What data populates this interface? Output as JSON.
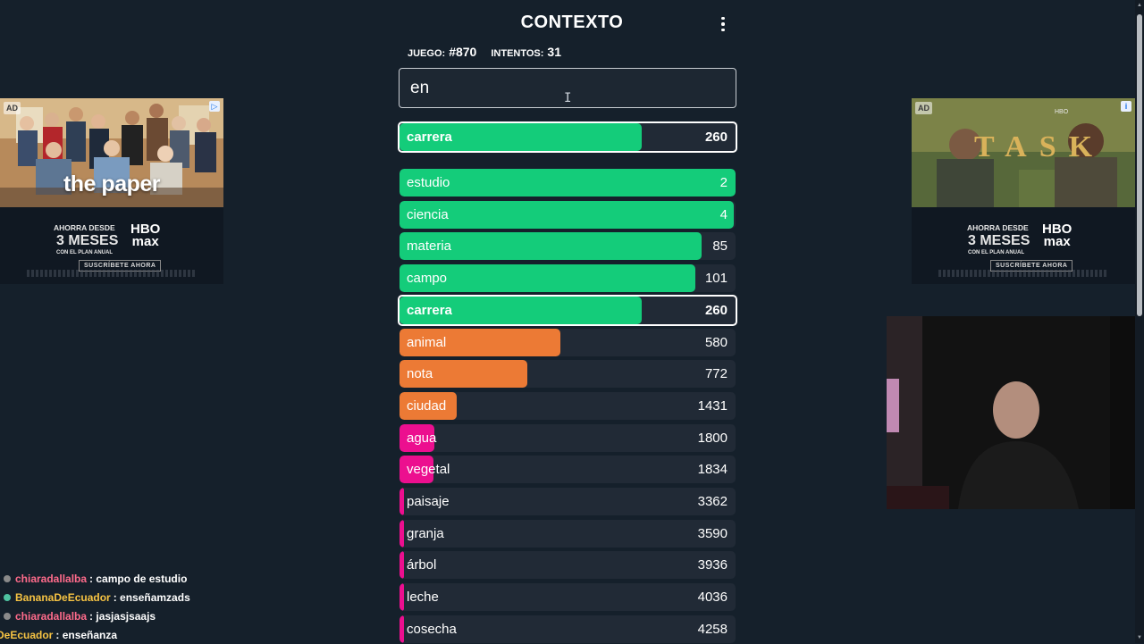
{
  "header": {
    "title": "CONTEXTO",
    "menu_icon": "kebab-menu-icon"
  },
  "game_info": {
    "game_label": "JUEGO:",
    "game_number": "#870",
    "attempts_label": "INTENTOS:",
    "attempts_value": "31"
  },
  "search": {
    "value": "en",
    "placeholder": ""
  },
  "last_guess": {
    "word": "carrera",
    "rank": "260",
    "fill": 0.72,
    "color": "#14cc7a"
  },
  "colors": {
    "green": "#14cc7a",
    "orange": "#ec7a35",
    "pink": "#ec0f8f",
    "row_bg": "#212a36"
  },
  "guesses": [
    {
      "word": "estudio",
      "rank": "2",
      "fill": 1.0,
      "color": "green",
      "highlight": false
    },
    {
      "word": "ciencia",
      "rank": "4",
      "fill": 0.995,
      "color": "green",
      "highlight": false
    },
    {
      "word": "materia",
      "rank": "85",
      "fill": 0.9,
      "color": "green",
      "highlight": false
    },
    {
      "word": "campo",
      "rank": "101",
      "fill": 0.88,
      "color": "green",
      "highlight": false
    },
    {
      "word": "carrera",
      "rank": "260",
      "fill": 0.72,
      "color": "green",
      "highlight": true
    },
    {
      "word": "animal",
      "rank": "580",
      "fill": 0.48,
      "color": "orange",
      "highlight": false
    },
    {
      "word": "nota",
      "rank": "772",
      "fill": 0.38,
      "color": "orange",
      "highlight": false
    },
    {
      "word": "ciudad",
      "rank": "1431",
      "fill": 0.17,
      "color": "orange",
      "highlight": false
    },
    {
      "word": "agua",
      "rank": "1800",
      "fill": 0.105,
      "color": "pink",
      "highlight": false
    },
    {
      "word": "vegetal",
      "rank": "1834",
      "fill": 0.1,
      "color": "pink",
      "highlight": false
    },
    {
      "word": "paisaje",
      "rank": "3362",
      "fill": 0.012,
      "color": "pink",
      "highlight": false
    },
    {
      "word": "granja",
      "rank": "3590",
      "fill": 0.011,
      "color": "pink",
      "highlight": false
    },
    {
      "word": "árbol",
      "rank": "3936",
      "fill": 0.01,
      "color": "pink",
      "highlight": false
    },
    {
      "word": "leche",
      "rank": "4036",
      "fill": 0.01,
      "color": "pink",
      "highlight": false
    },
    {
      "word": "cosecha",
      "rank": "4258",
      "fill": 0.009,
      "color": "pink",
      "highlight": false
    }
  ],
  "ads": {
    "left": {
      "badge": "AD",
      "title": "the paper",
      "promo_top": "AHORRA DESDE",
      "promo_big": "3 MESES",
      "promo_bottom": "CON EL PLAN ANUAL",
      "brand_top": "HBO",
      "brand_bottom": "max",
      "cta": "SUSCRÍBETE AHORA"
    },
    "right": {
      "badge": "AD",
      "title": "TASK",
      "small_brand": "HBO",
      "promo_top": "AHORRA DESDE",
      "promo_big": "3 MESES",
      "promo_bottom": "CON EL PLAN ANUAL",
      "brand_top": "HBO",
      "brand_bottom": "max",
      "cta": "SUSCRÍBETE AHORA"
    }
  },
  "chat": [
    {
      "user": "chiaradallalba",
      "user_color": "#ff6b8b",
      "message": ": campo de estudio"
    },
    {
      "user": "BananaDeEcuador",
      "user_color": "#f6c343",
      "message": ": enseñamzads"
    },
    {
      "user": "chiaradallalba",
      "user_color": "#ff6b8b",
      "message": ": jasjasjsaajs"
    },
    {
      "user": "DeEcuador",
      "user_color": "#f6c343",
      "message": ": enseñanza"
    }
  ]
}
